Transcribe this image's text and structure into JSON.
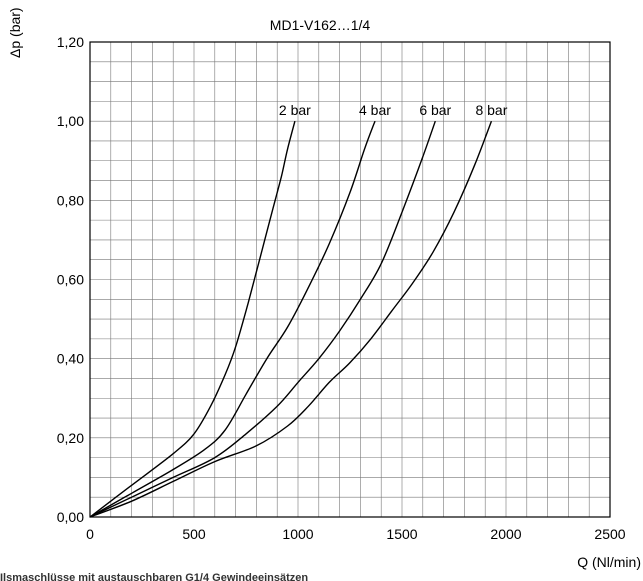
{
  "chart_data": {
    "type": "line",
    "title": "MD1-V162…1/4",
    "xlabel": "Q (Nl/min)",
    "ylabel": "Δp (bar)",
    "xlim": [
      0,
      2500
    ],
    "ylim": [
      0,
      1.2
    ],
    "x_ticks": [
      0,
      500,
      1000,
      1500,
      2000,
      2500
    ],
    "x_tick_labels": [
      "0",
      "500",
      "1000",
      "1500",
      "2000",
      "2500"
    ],
    "y_ticks": [
      0,
      0.2,
      0.4,
      0.6,
      0.8,
      1.0,
      1.2
    ],
    "y_tick_labels": [
      "0,00",
      "0,20",
      "0,40",
      "0,60",
      "0,80",
      "1,00",
      "1,20"
    ],
    "grid": true,
    "series": [
      {
        "name": "2 bar",
        "points": [
          [
            0,
            0
          ],
          [
            200,
            0.08
          ],
          [
            400,
            0.16
          ],
          [
            500,
            0.21
          ],
          [
            580,
            0.28
          ],
          [
            650,
            0.36
          ],
          [
            700,
            0.43
          ],
          [
            760,
            0.54
          ],
          [
            820,
            0.66
          ],
          [
            880,
            0.78
          ],
          [
            920,
            0.86
          ],
          [
            950,
            0.93
          ],
          [
            985,
            1.0
          ]
        ]
      },
      {
        "name": "4 bar",
        "points": [
          [
            0,
            0
          ],
          [
            200,
            0.06
          ],
          [
            400,
            0.12
          ],
          [
            550,
            0.17
          ],
          [
            650,
            0.22
          ],
          [
            750,
            0.31
          ],
          [
            850,
            0.4
          ],
          [
            950,
            0.48
          ],
          [
            1050,
            0.58
          ],
          [
            1150,
            0.69
          ],
          [
            1250,
            0.82
          ],
          [
            1320,
            0.93
          ],
          [
            1370,
            1.0
          ]
        ]
      },
      {
        "name": "6 bar",
        "points": [
          [
            0,
            0
          ],
          [
            200,
            0.05
          ],
          [
            400,
            0.1
          ],
          [
            600,
            0.15
          ],
          [
            750,
            0.21
          ],
          [
            900,
            0.28
          ],
          [
            1000,
            0.34
          ],
          [
            1100,
            0.4
          ],
          [
            1200,
            0.47
          ],
          [
            1300,
            0.55
          ],
          [
            1400,
            0.64
          ],
          [
            1500,
            0.77
          ],
          [
            1600,
            0.91
          ],
          [
            1660,
            1.0
          ]
        ]
      },
      {
        "name": "8 bar",
        "points": [
          [
            0,
            0
          ],
          [
            200,
            0.04
          ],
          [
            400,
            0.09
          ],
          [
            600,
            0.14
          ],
          [
            800,
            0.18
          ],
          [
            950,
            0.23
          ],
          [
            1050,
            0.28
          ],
          [
            1150,
            0.34
          ],
          [
            1250,
            0.39
          ],
          [
            1350,
            0.45
          ],
          [
            1450,
            0.52
          ],
          [
            1550,
            0.59
          ],
          [
            1650,
            0.67
          ],
          [
            1750,
            0.77
          ],
          [
            1850,
            0.89
          ],
          [
            1930,
            1.0
          ]
        ]
      }
    ]
  },
  "footer_text": "Ilsmaschlüsse mit austauschbaren G1/4 Gewindeeinsätzen"
}
